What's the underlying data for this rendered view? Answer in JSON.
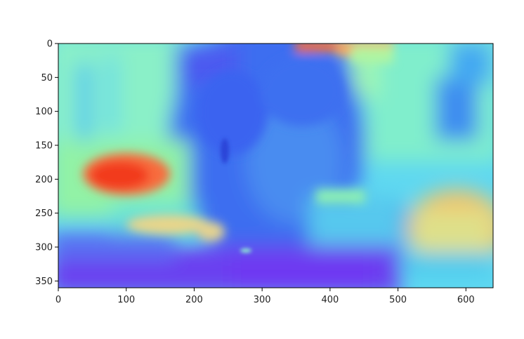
{
  "chart_data": {
    "type": "heatmap",
    "title": "",
    "xlabel": "",
    "ylabel": "",
    "colormap": "rainbow",
    "xlim": [
      0,
      640
    ],
    "ylim": [
      360,
      0
    ],
    "x_ticks": [
      0,
      100,
      200,
      300,
      400,
      500,
      600
    ],
    "y_ticks": [
      0,
      50,
      100,
      150,
      200,
      250,
      300,
      350
    ],
    "x_tick_labels": [
      "0",
      "100",
      "200",
      "300",
      "400",
      "500",
      "600"
    ],
    "y_tick_labels": [
      "0",
      "50",
      "100",
      "150",
      "200",
      "250",
      "300",
      "350"
    ],
    "grid": false,
    "regions": [
      {
        "label": "left-background",
        "x": [
          0,
          260
        ],
        "y": [
          0,
          150
        ],
        "level": 0.45
      },
      {
        "label": "right-upper-background",
        "x": [
          460,
          640
        ],
        "y": [
          0,
          180
        ],
        "level": 0.42
      },
      {
        "label": "top-warm-streak",
        "x": [
          340,
          500
        ],
        "y": [
          0,
          12
        ],
        "level": 0.85
      },
      {
        "label": "central-object",
        "x": [
          180,
          520
        ],
        "y": [
          0,
          360
        ],
        "level": 0.2
      },
      {
        "label": "left-hot-spot",
        "x": [
          30,
          160
        ],
        "y": [
          160,
          230
        ],
        "level": 0.95
      },
      {
        "label": "left-green-band",
        "x": [
          0,
          260
        ],
        "y": [
          150,
          300
        ],
        "level": 0.55
      },
      {
        "label": "right-mid-cyan",
        "x": [
          440,
          620
        ],
        "y": [
          220,
          290
        ],
        "level": 0.38
      },
      {
        "label": "right-lower-warm",
        "x": [
          540,
          640
        ],
        "y": [
          230,
          360
        ],
        "level": 0.7
      },
      {
        "label": "bottom-purple-band",
        "x": [
          0,
          560
        ],
        "y": [
          300,
          360
        ],
        "level": 0.1
      }
    ]
  }
}
